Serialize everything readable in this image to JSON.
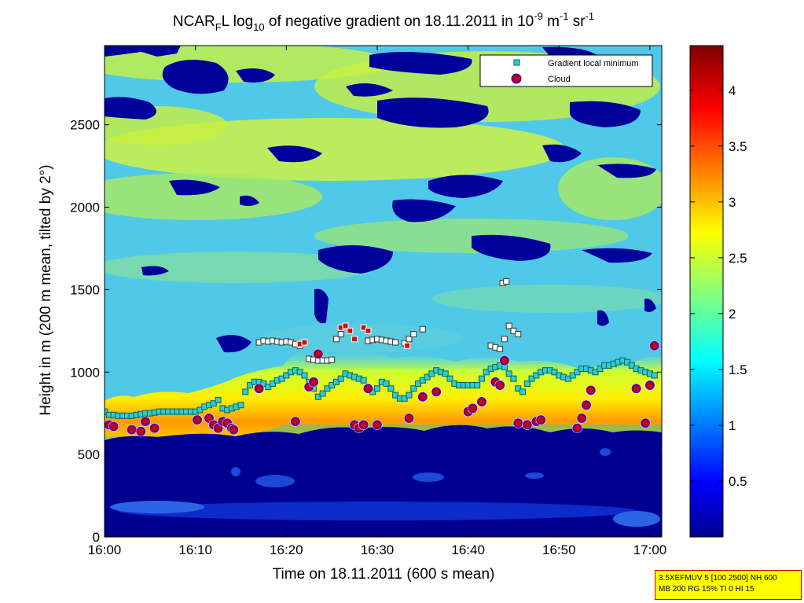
{
  "chart_data": {
    "type": "heatmap",
    "title": {
      "prefix": "NCAR",
      "prefix_sub": "F",
      "mid": "L log",
      "log_sub": "10",
      "main": " of negative gradient on 18.11.2011 in 10",
      "exp1": "-9",
      "unit_m": " m",
      "exp2": "-1",
      "unit_sr": " sr",
      "exp3": "-1"
    },
    "xlabel": "Time on 18.11.2011 (600 s mean)",
    "ylabel": "Height in m (200 m mean, tilted by 2°)",
    "x_ticks": [
      {
        "min": 0,
        "label": "16:00"
      },
      {
        "min": 10,
        "label": "16:10"
      },
      {
        "min": 20,
        "label": "16:20"
      },
      {
        "min": 30,
        "label": "16:30"
      },
      {
        "min": 40,
        "label": "16:40"
      },
      {
        "min": 50,
        "label": "16:50"
      },
      {
        "min": 60,
        "label": "17:00"
      }
    ],
    "xlim": [
      0,
      61.3
    ],
    "y_ticks": [
      0,
      500,
      1000,
      1500,
      2000,
      2500
    ],
    "ylim": [
      0,
      2980
    ],
    "colorbar": {
      "ticks": [
        "0.5",
        "1",
        "1.5",
        "2",
        "2.5",
        "3",
        "3.5",
        "4"
      ],
      "tick_values": [
        0.5,
        1,
        1.5,
        2,
        2.5,
        3,
        3.5,
        4
      ],
      "range": [
        0,
        4.4
      ],
      "colormap": "jet"
    },
    "legend": {
      "position": "top-right",
      "entries": [
        {
          "label": "Gradient local minimum",
          "color": "#33cccc"
        },
        {
          "label": "Cloud",
          "color": "#cc0000"
        }
      ]
    },
    "layers": {
      "ground_top_m": 610,
      "aerosol_layer_top_m": 1000,
      "upper_background_level": 2.0
    },
    "gradient_local_minimum": {
      "time_min": [
        0.0,
        0.5,
        1.0,
        1.5,
        2.0,
        2.5,
        3.0,
        3.5,
        4.0,
        4.5,
        5.0,
        5.5,
        6.0,
        6.5,
        7.0,
        7.5,
        8.0,
        8.5,
        9.0,
        9.5,
        10.0,
        10.5,
        11.0,
        11.5,
        12.0,
        12.5,
        13.0,
        13.5,
        14.0,
        14.5,
        15.0,
        15.5,
        16.0,
        16.5,
        17.0,
        17.5,
        18.0,
        18.5,
        19.0,
        19.5,
        20.0,
        20.5,
        21.0,
        21.5,
        22.0,
        22.5,
        23.0,
        23.5,
        24.0,
        24.5,
        25.0,
        25.5,
        26.0,
        26.5,
        27.0,
        27.5,
        28.0,
        28.5,
        29.0,
        29.5,
        30.0,
        30.5,
        31.0,
        31.5,
        32.0,
        32.5,
        33.0,
        33.5,
        34.0,
        34.5,
        35.0,
        35.5,
        36.0,
        36.5,
        37.0,
        37.5,
        38.0,
        38.5,
        39.0,
        39.5,
        40.0,
        40.5,
        41.0,
        41.5,
        42.0,
        42.5,
        43.0,
        43.5,
        44.0,
        44.5,
        45.0,
        45.5,
        46.0,
        46.5,
        47.0,
        47.5,
        48.0,
        48.5,
        49.0,
        49.5,
        50.0,
        50.5,
        51.0,
        51.5,
        52.0,
        52.5,
        53.0,
        53.5,
        54.0,
        54.5,
        55.0,
        55.5,
        56.0,
        56.5,
        57.0,
        57.5,
        58.0,
        58.5,
        59.0,
        59.5,
        60.0,
        60.5
      ],
      "height_m": [
        760,
        740,
        740,
        735,
        735,
        735,
        735,
        740,
        745,
        750,
        750,
        755,
        760,
        760,
        760,
        760,
        760,
        760,
        760,
        760,
        760,
        770,
        790,
        800,
        810,
        830,
        780,
        770,
        780,
        790,
        800,
        880,
        920,
        940,
        940,
        930,
        910,
        930,
        950,
        960,
        980,
        1000,
        1010,
        1000,
        980,
        940,
        900,
        850,
        870,
        900,
        920,
        940,
        960,
        990,
        980,
        970,
        960,
        950,
        900,
        880,
        900,
        940,
        930,
        900,
        860,
        840,
        840,
        860,
        900,
        930,
        950,
        970,
        990,
        1010,
        1000,
        990,
        960,
        930,
        920,
        920,
        920,
        920,
        920,
        960,
        1000,
        1020,
        1030,
        1040,
        1030,
        990,
        960,
        900,
        880,
        930,
        960,
        980,
        1000,
        1010,
        1010,
        1000,
        980,
        970,
        960,
        980,
        1000,
        1020,
        1020,
        1010,
        1000,
        1020,
        1040,
        1040,
        1050,
        1060,
        1070,
        1060,
        1040,
        1020,
        1010,
        1000,
        990,
        980
      ]
    },
    "upper_minimum_points": {
      "time_min": [
        17.0,
        17.5,
        18.0,
        18.5,
        19.0,
        19.5,
        20.0,
        20.5,
        21.0,
        21.5,
        22.5,
        23.0,
        23.5,
        24.0,
        24.5,
        25.0,
        25.5,
        26.0,
        29.0,
        29.5,
        30.0,
        30.5,
        31.0,
        31.5,
        32.0,
        33.0,
        33.5,
        34.0,
        35.0,
        42.5,
        43.0,
        43.5,
        44.0,
        44.5,
        45.0,
        45.5,
        43.8,
        44.2
      ],
      "height_m": [
        1180,
        1190,
        1185,
        1190,
        1185,
        1180,
        1185,
        1180,
        1170,
        1160,
        1080,
        1075,
        1070,
        1070,
        1070,
        1075,
        1200,
        1230,
        1190,
        1195,
        1200,
        1195,
        1190,
        1185,
        1180,
        1175,
        1200,
        1230,
        1260,
        1160,
        1150,
        1140,
        1200,
        1280,
        1250,
        1230,
        1540,
        1550
      ]
    },
    "upper_cloud_points": {
      "time_min": [
        21.5,
        22.0,
        26.0,
        26.5,
        27.0,
        27.5,
        28.5,
        29.0,
        33.3
      ],
      "height_m": [
        1170,
        1180,
        1270,
        1280,
        1250,
        1200,
        1270,
        1250,
        1160
      ]
    },
    "cloud": {
      "time_min": [
        0.5,
        1.0,
        3.0,
        4.0,
        4.5,
        5.5,
        10.2,
        11.5,
        12.0,
        12.5,
        13.0,
        13.5,
        14.0,
        14.2,
        17.0,
        21.0,
        22.5,
        23.0,
        23.5,
        27.5,
        28.0,
        28.5,
        29.0,
        30.0,
        33.5,
        35.0,
        36.5,
        40.0,
        40.5,
        41.5,
        43.0,
        43.5,
        44.0,
        45.5,
        46.5,
        47.5,
        48.0,
        52.0,
        52.5,
        53.0,
        53.5,
        58.5,
        59.5,
        60.0,
        60.5
      ],
      "height_m": [
        680,
        670,
        650,
        640,
        700,
        660,
        710,
        720,
        680,
        660,
        700,
        690,
        660,
        650,
        900,
        700,
        910,
        940,
        1110,
        680,
        660,
        680,
        900,
        680,
        720,
        850,
        880,
        760,
        780,
        820,
        940,
        920,
        1070,
        690,
        680,
        700,
        710,
        660,
        720,
        800,
        890,
        900,
        690,
        920,
        1160
      ]
    }
  },
  "infobox": {
    "line1": "3.5XEFMUV 5 [100 2500] NH 600",
    "line2": "MB 200 RG 15% TI 0 HI 15"
  }
}
